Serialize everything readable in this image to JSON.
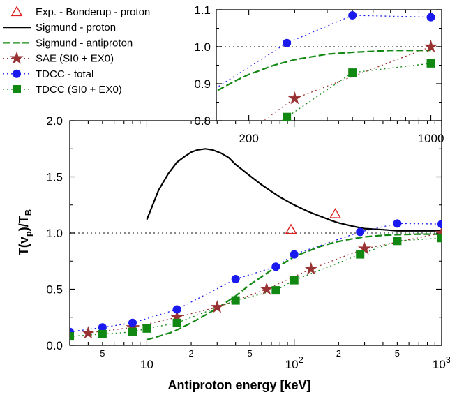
{
  "chart_data": {
    "type": "scatter",
    "main": {
      "xlabel": "Antiproton energy [keV]",
      "ylabel_main": "T(v",
      "ylabel_sub_p": "p",
      "ylabel_mid": ")/T",
      "ylabel_sub_b": "B",
      "x_scale": "log",
      "xlim": [
        3,
        1000
      ],
      "ylim": [
        0.0,
        2.0
      ],
      "y_ticks": [
        "0.0",
        "0.5",
        "1.0",
        "1.5",
        "2.0"
      ],
      "x_tick_labels": [
        {
          "x": 5,
          "label": "5",
          "size": "small"
        },
        {
          "x": 10,
          "label": "10",
          "size": "large"
        },
        {
          "x": 20,
          "label": "2",
          "size": "small"
        },
        {
          "x": 50,
          "label": "5",
          "size": "small"
        },
        {
          "x": 100,
          "label": "10",
          "sup": "2",
          "size": "large"
        },
        {
          "x": 200,
          "label": "2",
          "size": "small"
        },
        {
          "x": 500,
          "label": "5",
          "size": "small"
        },
        {
          "x": 1000,
          "label": "10",
          "sup": "3",
          "size": "large"
        }
      ],
      "reference_line": 1.0
    },
    "inset": {
      "x_scale": "log",
      "xlim": [
        150,
        1100
      ],
      "ylim": [
        0.8,
        1.1
      ],
      "y_ticks": [
        "0.8",
        "0.9",
        "1.0",
        "1.1"
      ],
      "x_tick_labels": [
        {
          "x": 200,
          "label": "200"
        },
        {
          "x": 1000,
          "label": "1000"
        }
      ],
      "reference_line": 1.0
    },
    "legend_position": "top-left",
    "series": [
      {
        "key": "bonderup",
        "name": "Exp. - Bonderup - proton",
        "color": "#dd2222",
        "marker": "triangle-open",
        "line": "none",
        "x": [
          95,
          190
        ],
        "y": [
          1.03,
          1.17
        ]
      },
      {
        "key": "sig_proton",
        "name": "Sigmund - proton",
        "color": "#000000",
        "marker": "none",
        "line": "solid",
        "x": [
          10,
          12,
          14,
          16,
          18,
          20,
          22,
          25,
          28,
          32,
          36,
          40,
          50,
          60,
          70,
          80,
          100,
          125,
          150,
          180,
          200,
          250,
          300,
          400,
          500,
          700,
          1000
        ],
        "y": [
          1.12,
          1.38,
          1.53,
          1.63,
          1.68,
          1.72,
          1.74,
          1.75,
          1.74,
          1.71,
          1.67,
          1.61,
          1.51,
          1.43,
          1.37,
          1.32,
          1.25,
          1.19,
          1.15,
          1.11,
          1.09,
          1.06,
          1.04,
          1.03,
          1.02,
          1.02,
          1.02
        ]
      },
      {
        "key": "sig_anti",
        "name": "Sigmund - antiproton",
        "color": "#118811",
        "marker": "none",
        "line": "dashed",
        "x": [
          10,
          12,
          15,
          18,
          20,
          25,
          30,
          40,
          50,
          60,
          70,
          80,
          100,
          125,
          150,
          180,
          200,
          250,
          300,
          400,
          500,
          700,
          1000
        ],
        "y": [
          0.05,
          0.08,
          0.12,
          0.17,
          0.2,
          0.27,
          0.33,
          0.44,
          0.54,
          0.61,
          0.67,
          0.71,
          0.79,
          0.84,
          0.88,
          0.91,
          0.925,
          0.95,
          0.965,
          0.98,
          0.985,
          0.99,
          0.99
        ]
      },
      {
        "key": "sae",
        "name": "SAE (SI0 + EX0)",
        "color": "#993333",
        "marker": "star",
        "line": "dotted",
        "x": [
          4,
          8,
          16,
          30,
          65,
          130,
          300,
          1000
        ],
        "y": [
          0.11,
          0.16,
          0.25,
          0.34,
          0.5,
          0.68,
          0.86,
          1.0
        ]
      },
      {
        "key": "tdcc_total",
        "name": "TDCC - total",
        "color": "#1a1aee",
        "marker": "circle",
        "line": "dotted",
        "x": [
          3,
          5,
          8,
          16,
          40,
          75,
          100,
          280,
          500,
          1000
        ],
        "y": [
          0.12,
          0.16,
          0.2,
          0.32,
          0.59,
          0.7,
          0.81,
          1.01,
          1.085,
          1.08
        ]
      },
      {
        "key": "tdcc_si0",
        "name": "TDCC (SI0 + EX0)",
        "color": "#118811",
        "marker": "square",
        "line": "dotted",
        "x": [
          3,
          5,
          8,
          10,
          16,
          40,
          75,
          100,
          280,
          500,
          1000
        ],
        "y": [
          0.08,
          0.1,
          0.12,
          0.15,
          0.2,
          0.4,
          0.49,
          0.58,
          0.81,
          0.93,
          0.955
        ]
      }
    ]
  }
}
